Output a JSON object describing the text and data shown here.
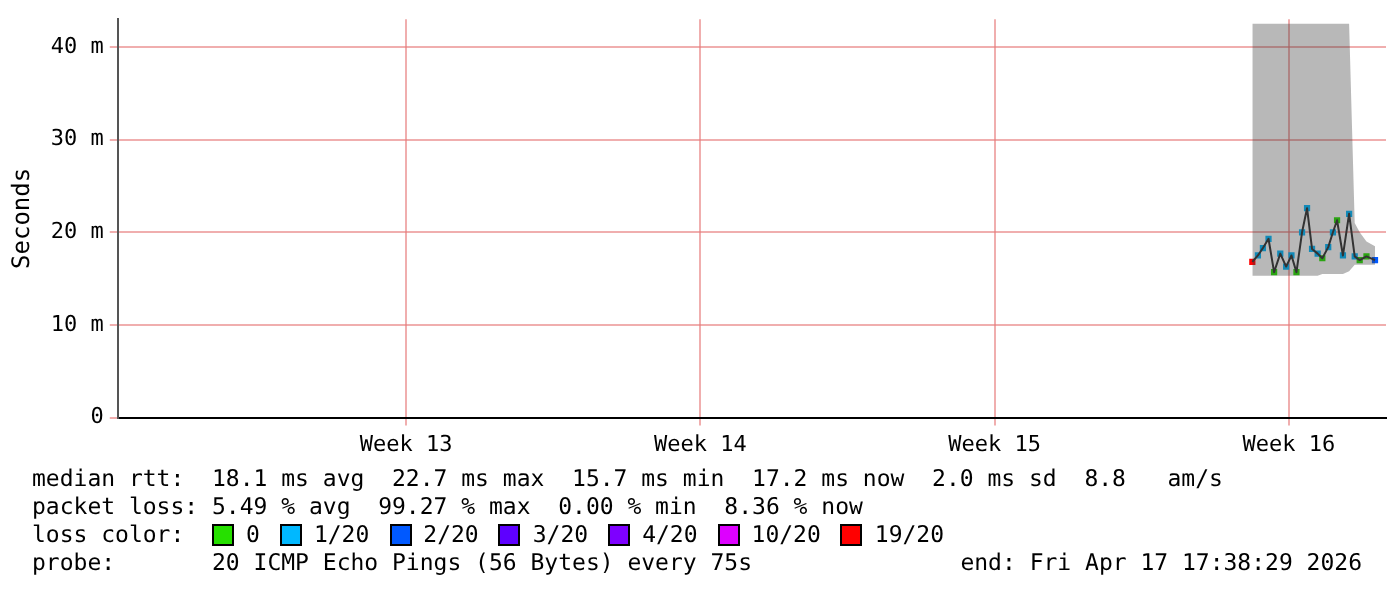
{
  "chart_data": {
    "type": "line",
    "ylabel": "Seconds",
    "xlim": [
      "2026-03-18T15:20",
      "2026-04-17T19:30"
    ],
    "ylim": [
      0,
      43
    ],
    "xticks": [
      {
        "value": "2026-03-25T12:00",
        "label": "Week 13"
      },
      {
        "value": "2026-04-01T12:00",
        "label": "Week 14"
      },
      {
        "value": "2026-04-08T12:00",
        "label": "Week 15"
      },
      {
        "value": "2026-04-15T12:00",
        "label": "Week 16"
      }
    ],
    "yticks": [
      0,
      {
        "value": 10,
        "label": "10 m"
      },
      {
        "value": 20,
        "label": "20 m"
      },
      {
        "value": 30,
        "label": "30 m"
      },
      {
        "value": 40,
        "label": "40 m"
      }
    ],
    "grid": true,
    "legend": "bottom",
    "legend_title": "loss color:",
    "series": [
      {
        "color": "#333333",
        "marker": "none",
        "x": [
          "2026-04-14T15:10",
          "2026-04-14T18:22",
          "2026-04-14T21:13",
          "2026-04-15T00:25",
          "2026-04-15T03:36",
          "2026-04-15T07:08",
          "2026-04-15T10:29",
          "2026-04-15T13:31",
          "2026-04-15T16:22",
          "2026-04-15T19:34",
          "2026-04-15T22:25",
          "2026-04-16T01:16",
          "2026-04-16T04:28",
          "2026-04-16T07:09",
          "2026-04-16T10:31",
          "2026-04-16T13:12",
          "2026-04-16T15:33",
          "2026-04-16T18:55",
          "2026-04-16T22:26",
          "2026-04-17T01:38",
          "2026-04-17T04:29",
          "2026-04-17T08:21",
          "2026-04-17T13:13"
        ],
        "values": [
          16.8,
          17.5,
          18.3,
          19.3,
          15.7,
          17.7,
          16.3,
          17.5,
          15.7,
          20.0,
          22.6,
          18.2,
          17.7,
          17.2,
          18.4,
          20.0,
          21.3,
          17.5,
          22.0,
          17.4,
          17.0,
          17.4,
          17.0
        ],
        "lower": [
          15.3,
          15.3,
          15.3,
          15.3,
          15.3,
          15.3,
          15.3,
          15.3,
          15.3,
          15.3,
          15.3,
          15.3,
          15.3,
          15.5,
          15.5,
          15.5,
          15.5,
          15.5,
          15.8,
          16.5,
          16.5,
          16.5,
          16.5
        ],
        "upper": [
          42.5,
          42.5,
          42.5,
          42.5,
          42.5,
          42.5,
          42.5,
          42.5,
          42.5,
          42.5,
          42.5,
          42.5,
          42.5,
          42.5,
          42.5,
          42.5,
          42.5,
          42.5,
          42.5,
          21,
          20,
          19,
          18.5
        ]
      },
      {
        "type": "scatter",
        "name": "0",
        "color": "#26e000",
        "marker": "square",
        "x": [
          "2026-04-15T03:36",
          "2026-04-15T16:22",
          "2026-04-16T07:09",
          "2026-04-16T15:33",
          "2026-04-17T04:29",
          "2026-04-17T08:21"
        ],
        "values": [
          15.7,
          15.7,
          17.2,
          21.3,
          17.0,
          17.4
        ]
      },
      {
        "type": "scatter",
        "name": "1/20",
        "color": "#00b8ff",
        "marker": "square",
        "x": [
          "2026-04-14T18:22",
          "2026-04-14T21:13",
          "2026-04-15T00:25",
          "2026-04-15T07:08",
          "2026-04-15T10:29",
          "2026-04-15T13:31",
          "2026-04-15T19:34",
          "2026-04-15T22:25",
          "2026-04-16T01:16",
          "2026-04-16T04:28",
          "2026-04-16T10:31",
          "2026-04-16T13:12",
          "2026-04-16T18:55",
          "2026-04-16T22:26",
          "2026-04-17T01:38"
        ],
        "values": [
          17.5,
          18.3,
          19.3,
          17.7,
          16.3,
          17.5,
          20.0,
          22.6,
          18.2,
          17.7,
          18.4,
          20.0,
          17.5,
          22.0,
          17.4
        ]
      },
      {
        "type": "scatter",
        "name": "2/20",
        "color": "#0059ff",
        "marker": "square",
        "x": [
          "2026-04-17T13:13"
        ],
        "values": [
          17.0
        ]
      },
      {
        "type": "scatter",
        "name": "3/20",
        "color": "#5e00ff",
        "marker": "square"
      },
      {
        "type": "scatter",
        "name": "4/20",
        "color": "#7e00ff",
        "marker": "square"
      },
      {
        "type": "scatter",
        "name": "10/20",
        "color": "#dd00ff",
        "marker": "square"
      },
      {
        "type": "scatter",
        "name": "19/20",
        "color": "#ff0000",
        "marker": "square",
        "x": [
          "2026-04-14T15:10"
        ],
        "values": [
          16.8
        ]
      }
    ],
    "annotations": [
      "median rtt:  18.1 ms avg  22.7 ms max  15.7 ms min  17.2 ms now  2.0 ms sd  8.8   am/s",
      "packet loss: 5.49 % avg  99.27 % max  0.00 % min  8.36 % now",
      "probe:       20 ICMP Echo Pings (56 Bytes) every 75s",
      "end: Fri Apr 17 17:38:29 2026"
    ]
  }
}
